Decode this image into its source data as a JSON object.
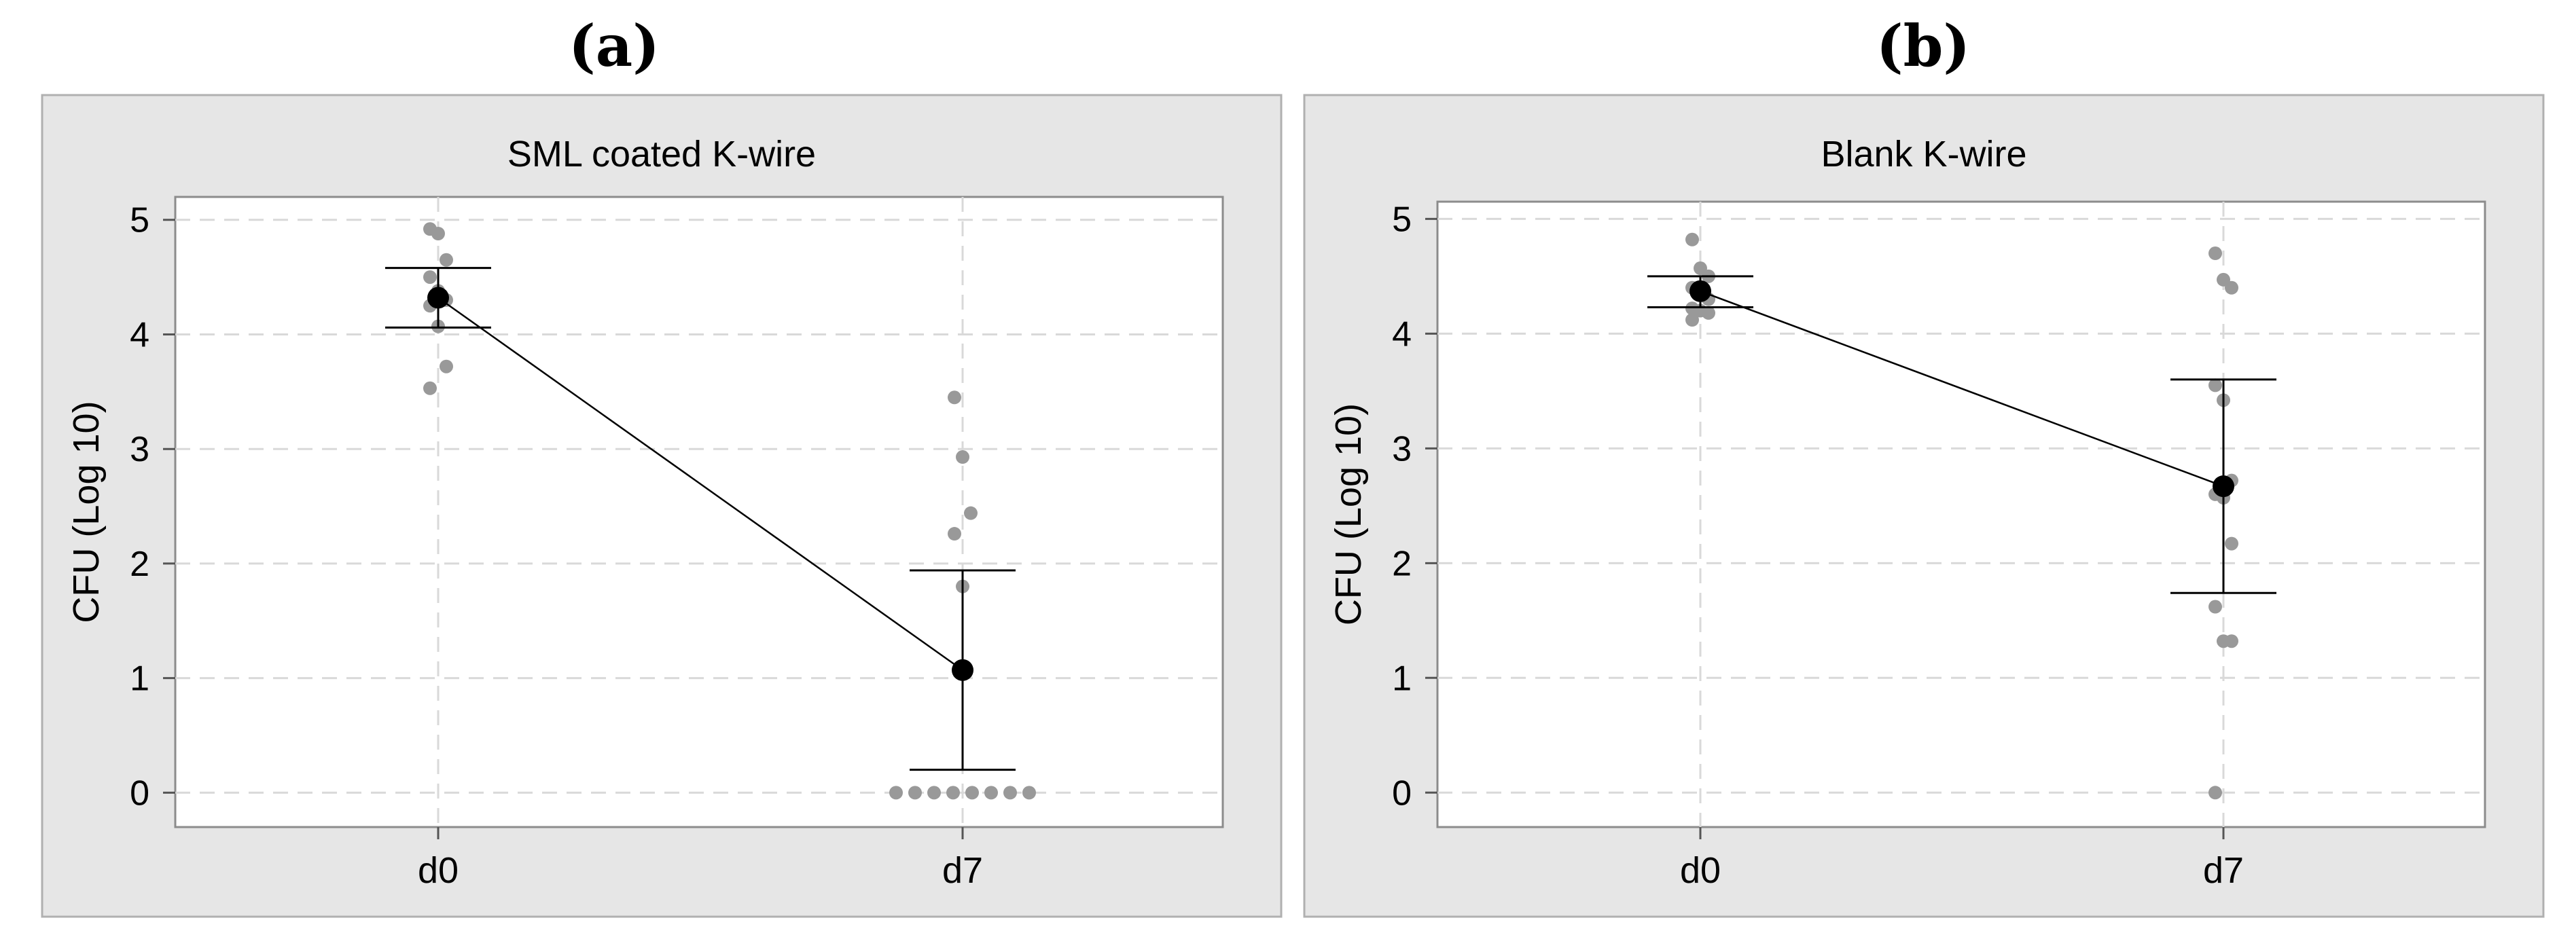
{
  "panels": [
    {
      "letter": "(a)",
      "chart_data": {
        "type": "scatter",
        "title": "SML coated K-wire",
        "ylabel": "CFU (Log 10)",
        "xlabel": "",
        "categories": [
          "d0",
          "d7"
        ],
        "ylim": [
          -0.3,
          5.2
        ],
        "yticks": [
          0,
          1,
          2,
          3,
          4,
          5
        ],
        "grid": true,
        "points": {
          "d0": [
            4.92,
            4.88,
            4.65,
            4.5,
            4.38,
            4.3,
            4.25,
            4.07,
            3.72,
            3.53
          ],
          "d7": [
            3.45,
            2.93,
            2.44,
            2.26,
            1.8,
            0,
            0,
            0,
            0,
            0,
            0,
            0,
            0
          ]
        },
        "means": [
          4.32,
          1.07
        ],
        "error_bars": [
          [
            4.06,
            4.58
          ],
          [
            0.2,
            1.94
          ]
        ],
        "colors": {
          "points": "#999999",
          "mean": "#000000",
          "background": "#e6e6e6"
        }
      }
    },
    {
      "letter": "(b)",
      "chart_data": {
        "type": "scatter",
        "title": "Blank K-wire",
        "ylabel": "CFU (Log 10)",
        "xlabel": "",
        "categories": [
          "d0",
          "d7"
        ],
        "ylim": [
          -0.3,
          5.15
        ],
        "yticks": [
          0,
          1,
          2,
          3,
          4,
          5
        ],
        "grid": true,
        "points": {
          "d0": [
            4.82,
            4.57,
            4.5,
            4.4,
            4.35,
            4.3,
            4.22,
            4.2,
            4.18,
            4.12
          ],
          "d7": [
            4.7,
            4.47,
            4.4,
            3.55,
            3.42,
            2.72,
            2.6,
            2.57,
            2.17,
            1.62,
            1.32,
            1.32,
            0
          ]
        },
        "means": [
          4.37,
          2.67
        ],
        "error_bars": [
          [
            4.23,
            4.5
          ],
          [
            1.74,
            3.6
          ]
        ],
        "colors": {
          "points": "#999999",
          "mean": "#000000",
          "background": "#e6e6e6"
        }
      }
    }
  ]
}
